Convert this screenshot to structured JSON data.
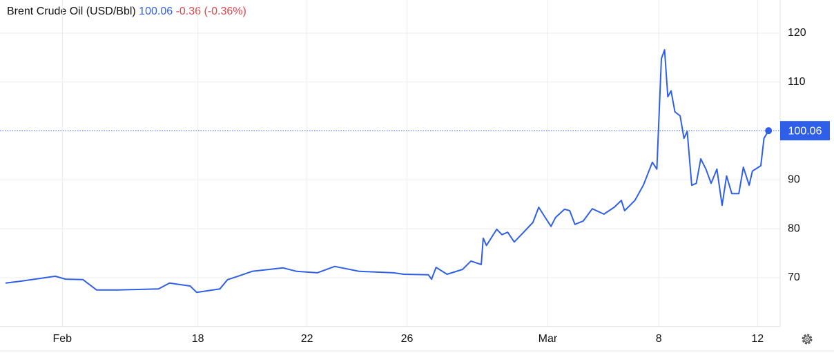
{
  "chart_data": {
    "type": "line",
    "title": "Brent Crude Oil (USD/Bbl)",
    "last_price": 100.06,
    "change": "-0.36 (-0.36%)",
    "series": [
      {
        "color": "#2f5fe8",
        "x": [
          0,
          2.4,
          7.7,
          9.3,
          12,
          14.1,
          17.3,
          23.7,
          25.4,
          28.6,
          29.6,
          33.2,
          34.4,
          36,
          38.2,
          43,
          45.1,
          48.3,
          51,
          54.8,
          60.1,
          61.7,
          65.5,
          66,
          66.7,
          68.4,
          70.8,
          72.1,
          73.7,
          74,
          74.5,
          76.1,
          76.9,
          77.8,
          78.8,
          79.9,
          81.7,
          82.6,
          83.6,
          84.5,
          85.2,
          86.6,
          87.4,
          88.2,
          89.5,
          90.9,
          92.7,
          94.3,
          95.4,
          95.9,
          97.5,
          98.8,
          100.2,
          100.9,
          101.6,
          102.1,
          102.6,
          103.1,
          103.7,
          104.5,
          105.1,
          105.6,
          106.3,
          107,
          107.7,
          108.5,
          109.3,
          110.2,
          111,
          111.7,
          112.5,
          113.6,
          114.3,
          115.2,
          115.7,
          117,
          117.5,
          118.2
        ],
        "values": [
          68.9,
          69.3,
          70.3,
          69.7,
          69.6,
          67.5,
          67.5,
          67.7,
          68.9,
          68.3,
          67.0,
          67.7,
          69.6,
          70.3,
          71.3,
          72.0,
          71.3,
          71.0,
          72.3,
          71.3,
          71.0,
          70.7,
          70.6,
          69.7,
          72.1,
          70.7,
          71.7,
          73.4,
          72.7,
          78.1,
          76.6,
          79.9,
          78.8,
          79.3,
          77.3,
          78.8,
          81.3,
          84.4,
          82.3,
          80.5,
          82.3,
          84.0,
          83.7,
          80.9,
          81.6,
          84.1,
          83.0,
          84.4,
          85.8,
          83.7,
          85.8,
          88.9,
          93.6,
          92.2,
          114.8,
          116.6,
          107,
          108.2,
          103.9,
          103.1,
          98.5,
          99.9,
          88.9,
          89.3,
          94.3,
          92.2,
          89.3,
          92.2,
          84.8,
          90.8,
          87.2,
          87.2,
          92.6,
          88.9,
          91.8,
          92.9,
          98.5,
          100.06
        ]
      }
    ],
    "xlim": [
      0,
      120
    ],
    "xticks": [
      {
        "value": 8.8,
        "label": "Feb"
      },
      {
        "value": 29.8,
        "label": "18"
      },
      {
        "value": 46.7,
        "label": "22"
      },
      {
        "value": 62.2,
        "label": "26"
      },
      {
        "value": 84,
        "label": "Mar"
      },
      {
        "value": 101.2,
        "label": "8"
      },
      {
        "value": 116.5,
        "label": "12"
      }
    ],
    "ylim": [
      60,
      125
    ],
    "yticks": [
      70,
      80,
      90,
      110,
      120
    ],
    "grid": true
  }
}
